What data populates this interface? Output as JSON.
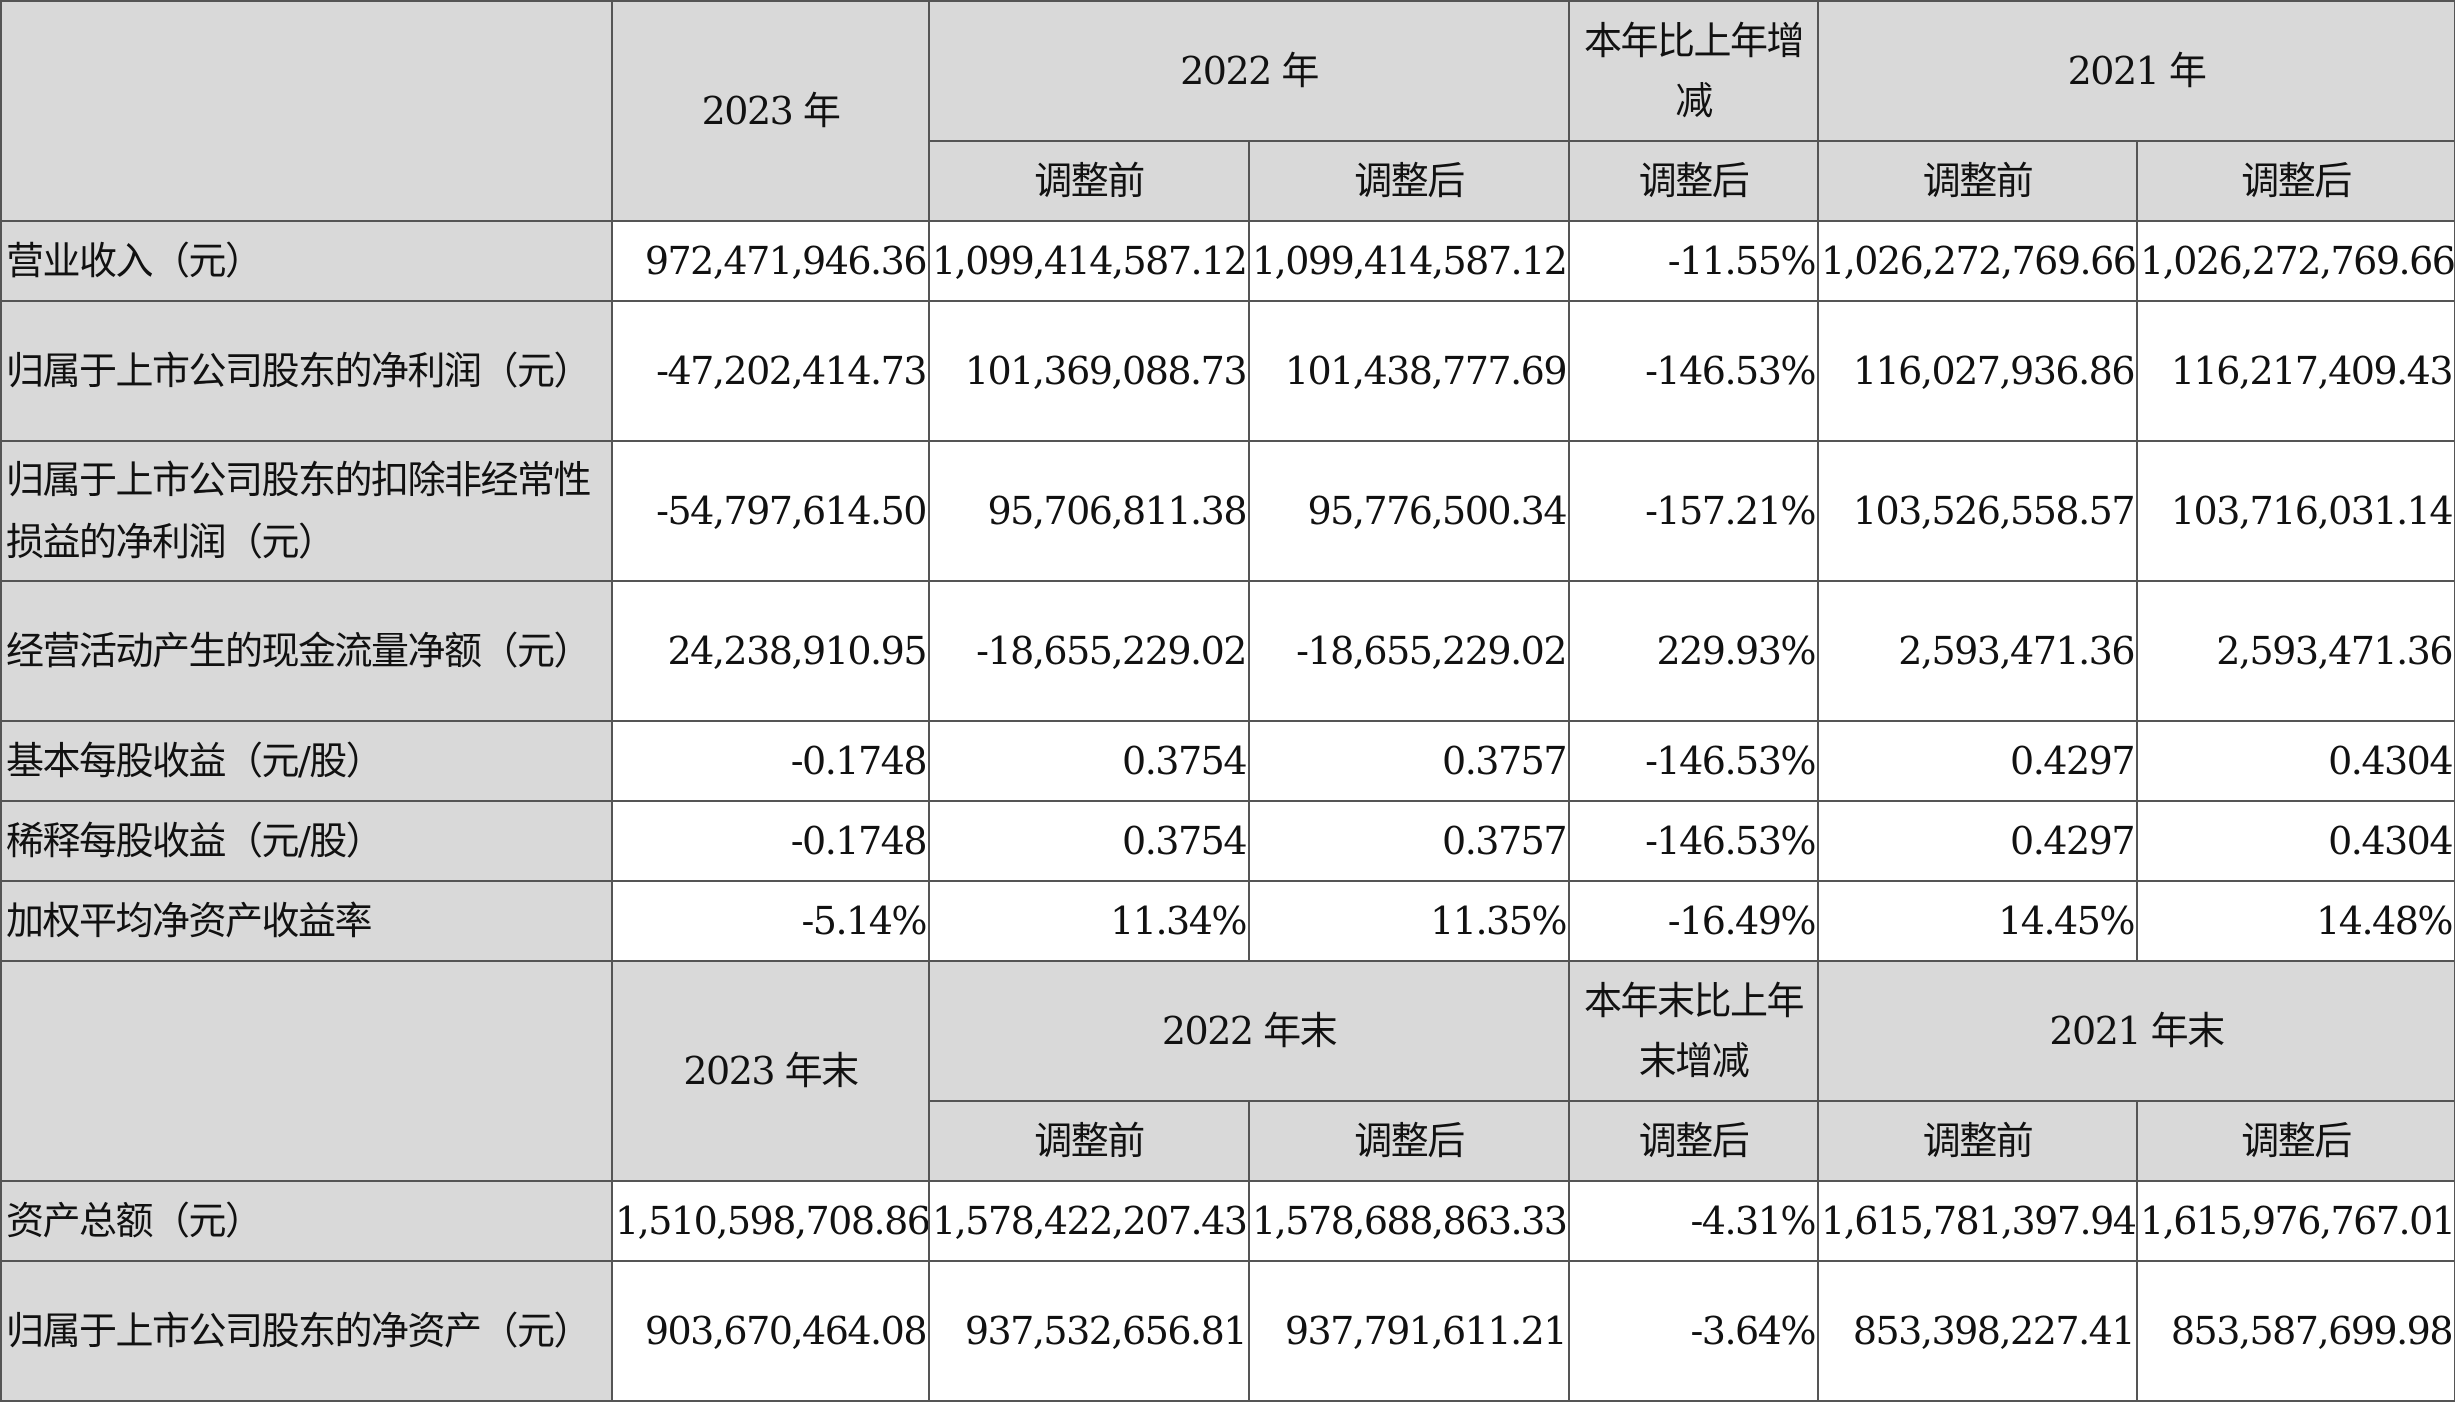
{
  "header_top": {
    "year_2023": "2023 年",
    "year_2022": "2022 年",
    "change": "本年比上年增减",
    "year_2021": "2021 年",
    "before": "调整前",
    "after": "调整后"
  },
  "income_rows": [
    {
      "label": "营业收入（元）",
      "values": [
        "972,471,946.36",
        "1,099,414,587.12",
        "1,099,414,587.12",
        "-11.55%",
        "1,026,272,769.66",
        "1,026,272,769.66"
      ]
    },
    {
      "label": "归属于上市公司股东的净利润（元）",
      "values": [
        "-47,202,414.73",
        "101,369,088.73",
        "101,438,777.69",
        "-146.53%",
        "116,027,936.86",
        "116,217,409.43"
      ]
    },
    {
      "label": "归属于上市公司股东的扣除非经常性损益的净利润（元）",
      "values": [
        "-54,797,614.50",
        "95,706,811.38",
        "95,776,500.34",
        "-157.21%",
        "103,526,558.57",
        "103,716,031.14"
      ]
    },
    {
      "label": "经营活动产生的现金流量净额（元）",
      "values": [
        "24,238,910.95",
        "-18,655,229.02",
        "-18,655,229.02",
        "229.93%",
        "2,593,471.36",
        "2,593,471.36"
      ]
    },
    {
      "label": "基本每股收益（元/股）",
      "values": [
        "-0.1748",
        "0.3754",
        "0.3757",
        "-146.53%",
        "0.4297",
        "0.4304"
      ]
    },
    {
      "label": "稀释每股收益（元/股）",
      "values": [
        "-0.1748",
        "0.3754",
        "0.3757",
        "-146.53%",
        "0.4297",
        "0.4304"
      ]
    },
    {
      "label": "加权平均净资产收益率",
      "values": [
        "-5.14%",
        "11.34%",
        "11.35%",
        "-16.49%",
        "14.45%",
        "14.48%"
      ]
    }
  ],
  "header_bottom": {
    "year_2023": "2023 年末",
    "year_2022": "2022 年末",
    "change": "本年末比上年末增减",
    "year_2021": "2021 年末",
    "before": "调整前",
    "after": "调整后"
  },
  "balance_rows": [
    {
      "label": "资产总额（元）",
      "values": [
        "1,510,598,708.86",
        "1,578,422,207.43",
        "1,578,688,863.33",
        "-4.31%",
        "1,615,781,397.94",
        "1,615,976,767.01"
      ]
    },
    {
      "label": "归属于上市公司股东的净资产（元）",
      "values": [
        "903,670,464.08",
        "937,532,656.81",
        "937,791,611.21",
        "-3.64%",
        "853,398,227.41",
        "853,587,699.98"
      ]
    }
  ]
}
